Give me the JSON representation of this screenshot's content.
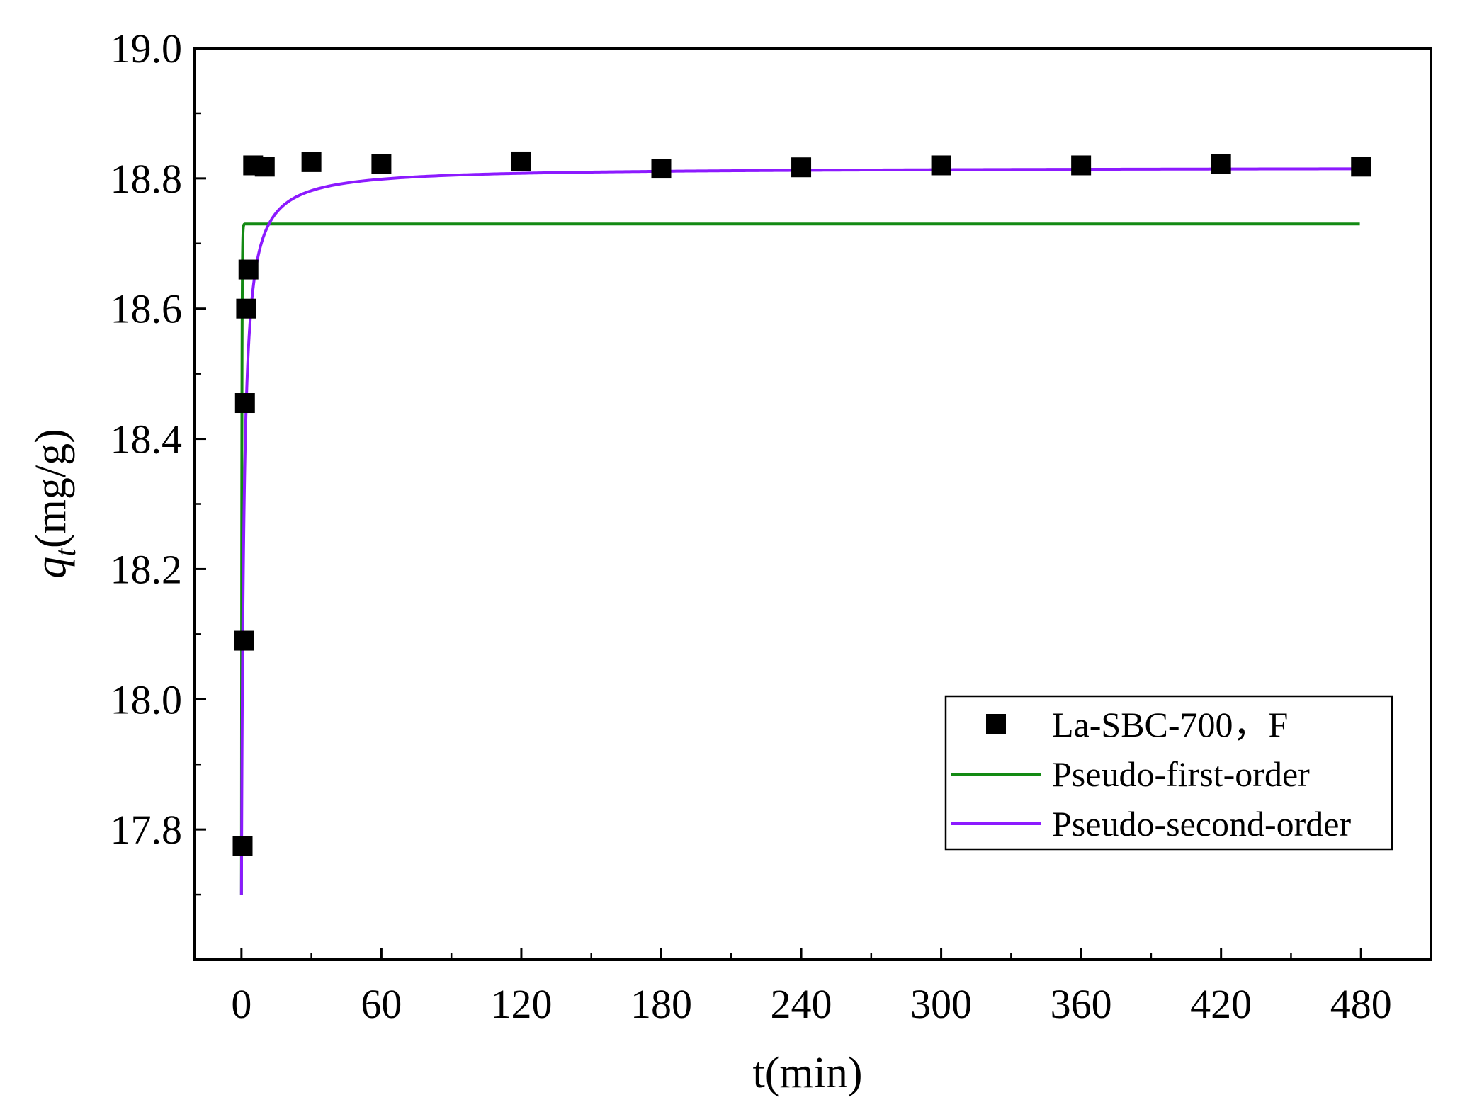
{
  "chart_data": {
    "type": "scatter",
    "xlabel": "t(min)",
    "ylabel": {
      "main": "q",
      "sub": "t",
      "unit": "(mg/g)"
    },
    "xlim": [
      -20,
      510
    ],
    "ylim": [
      17.6,
      19.0
    ],
    "xticks": [
      0,
      60,
      120,
      180,
      240,
      300,
      360,
      420,
      480
    ],
    "yticks": [
      17.8,
      18.0,
      18.2,
      18.4,
      18.6,
      18.8,
      19.0
    ],
    "xtick_labels": [
      "0",
      "60",
      "120",
      "180",
      "240",
      "300",
      "360",
      "420",
      "480"
    ],
    "ytick_labels": [
      "17.8",
      "18.0",
      "18.2",
      "18.4",
      "18.6",
      "18.8",
      "19.0"
    ],
    "grid": false,
    "legend_position": "bottom-right",
    "series": [
      {
        "name": "La-SBC-700，F",
        "kind": "scatter",
        "marker": "square",
        "color": "#000000",
        "x": [
          0.5,
          1,
          1.5,
          2,
          3,
          5,
          10,
          30,
          60,
          120,
          180,
          240,
          300,
          360,
          420,
          480
        ],
        "y": [
          17.775,
          18.09,
          18.455,
          18.6,
          18.66,
          18.82,
          18.818,
          18.825,
          18.822,
          18.826,
          18.815,
          18.817,
          18.82,
          18.82,
          18.822,
          18.818
        ]
      },
      {
        "name": "Pseudo-first-order",
        "kind": "line",
        "color": "#138a13",
        "model": {
          "qe": 18.73,
          "k": 6.5,
          "q0": 17.7
        }
      },
      {
        "name": "Pseudo-second-order",
        "kind": "line",
        "color": "#8c1aff",
        "model": {
          "qe": 18.817,
          "k": 0.9,
          "q0": 17.7
        }
      }
    ]
  }
}
